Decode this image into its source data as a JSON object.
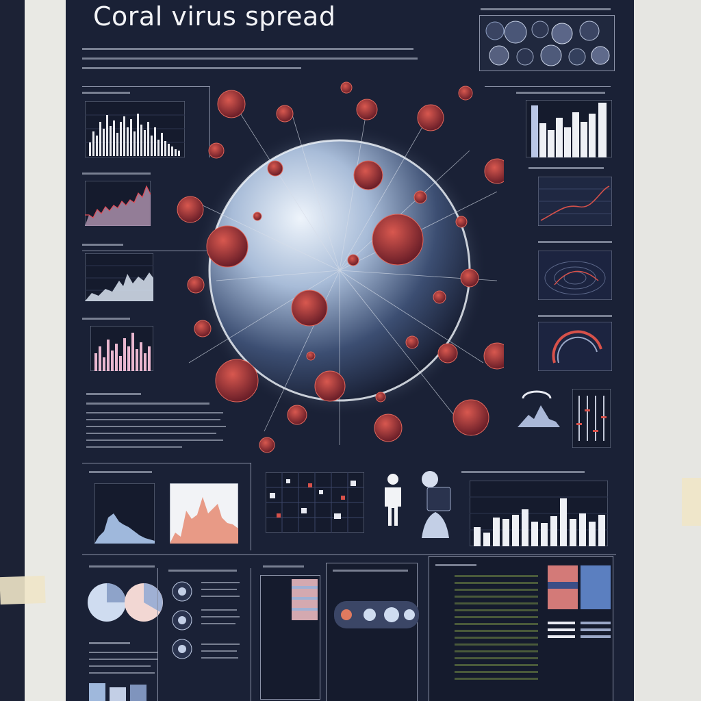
{
  "poster": {
    "title": "Coral virus spread",
    "colors": {
      "background": "#1a2136",
      "virus": "#b23a3a",
      "globe": "#cfe0f5",
      "bars": "#f2f3f6",
      "accent": "#d7514a"
    }
  }
}
